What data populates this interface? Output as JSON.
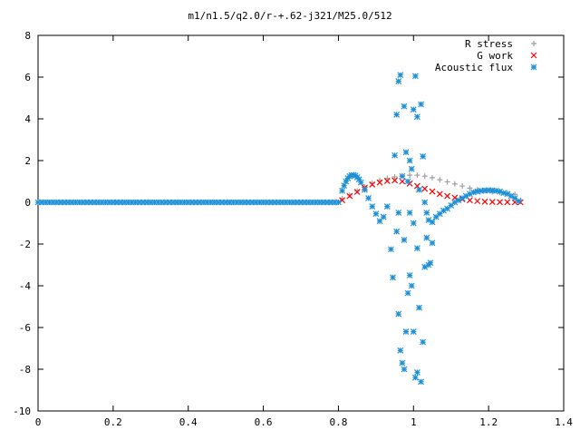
{
  "chart_data": {
    "type": "scatter",
    "title": "m1/n1.5/q2.0/r-+.62-j321/M25.0/512",
    "xlabel": "",
    "ylabel": "",
    "xlim": [
      0,
      1.4
    ],
    "ylim": [
      -10,
      8
    ],
    "x_ticks": [
      "0",
      "0.2",
      "0.4",
      "0.6",
      "0.8",
      "1",
      "1.2",
      "1.4"
    ],
    "y_ticks": [
      "-10",
      "-8",
      "-6",
      "-4",
      "-2",
      "0",
      "2",
      "4",
      "6",
      "8"
    ],
    "grid": false,
    "legend_position": "top-right",
    "series": [
      {
        "name": "R stress",
        "marker": "plus",
        "color": "#a0a0a0",
        "points": [
          [
            0.81,
            0.18
          ],
          [
            0.83,
            0.35
          ],
          [
            0.85,
            0.55
          ],
          [
            0.87,
            0.75
          ],
          [
            0.89,
            0.92
          ],
          [
            0.91,
            1.05
          ],
          [
            0.93,
            1.15
          ],
          [
            0.95,
            1.22
          ],
          [
            0.97,
            1.27
          ],
          [
            0.99,
            1.3
          ],
          [
            1.01,
            1.3
          ],
          [
            1.03,
            1.25
          ],
          [
            1.05,
            1.18
          ],
          [
            1.07,
            1.08
          ],
          [
            1.09,
            0.98
          ],
          [
            1.11,
            0.88
          ],
          [
            1.13,
            0.78
          ],
          [
            1.15,
            0.68
          ],
          [
            1.17,
            0.6
          ],
          [
            1.19,
            0.55
          ],
          [
            1.21,
            0.5
          ],
          [
            1.23,
            0.48
          ],
          [
            1.25,
            0.45
          ],
          [
            1.27,
            0.38
          ],
          [
            1.285,
            0.1
          ]
        ]
      },
      {
        "name": "G work",
        "marker": "cross",
        "color": "#ff0000",
        "points": [
          [
            0.81,
            0.1
          ],
          [
            0.83,
            0.3
          ],
          [
            0.85,
            0.5
          ],
          [
            0.87,
            0.7
          ],
          [
            0.89,
            0.85
          ],
          [
            0.91,
            0.95
          ],
          [
            0.93,
            1.02
          ],
          [
            0.95,
            1.05
          ],
          [
            0.97,
            1.0
          ],
          [
            0.99,
            0.9
          ],
          [
            1.01,
            0.78
          ],
          [
            1.03,
            0.65
          ],
          [
            1.05,
            0.52
          ],
          [
            1.07,
            0.4
          ],
          [
            1.09,
            0.3
          ],
          [
            1.11,
            0.22
          ],
          [
            1.13,
            0.15
          ],
          [
            1.15,
            0.1
          ],
          [
            1.17,
            0.06
          ],
          [
            1.19,
            0.03
          ],
          [
            1.21,
            0.02
          ],
          [
            1.23,
            0.01
          ],
          [
            1.25,
            0.01
          ],
          [
            1.27,
            0.0
          ],
          [
            1.285,
            0.0
          ]
        ]
      },
      {
        "name": "Acoustic flux",
        "marker": "star",
        "color": "#1e90d8",
        "points": [
          [
            0.81,
            0.55
          ],
          [
            0.815,
            0.8
          ],
          [
            0.82,
            1.0
          ],
          [
            0.825,
            1.15
          ],
          [
            0.83,
            1.25
          ],
          [
            0.835,
            1.3
          ],
          [
            0.84,
            1.3
          ],
          [
            0.845,
            1.28
          ],
          [
            0.85,
            1.2
          ],
          [
            0.855,
            1.1
          ],
          [
            0.86,
            0.95
          ],
          [
            0.87,
            0.6
          ],
          [
            0.88,
            0.2
          ],
          [
            0.89,
            -0.2
          ],
          [
            0.9,
            -0.55
          ],
          [
            0.91,
            -0.9
          ],
          [
            0.92,
            -0.7
          ],
          [
            0.93,
            -0.2
          ],
          [
            0.94,
            -2.25
          ],
          [
            0.945,
            -3.6
          ],
          [
            0.95,
            2.25
          ],
          [
            0.955,
            4.2
          ],
          [
            0.96,
            5.8
          ],
          [
            0.965,
            6.1
          ],
          [
            0.97,
            1.25
          ],
          [
            0.975,
            4.6
          ],
          [
            0.98,
            2.4
          ],
          [
            0.985,
            1.0
          ],
          [
            0.99,
            2.0
          ],
          [
            0.995,
            1.6
          ],
          [
            1.0,
            4.45
          ],
          [
            1.005,
            6.05
          ],
          [
            1.01,
            4.1
          ],
          [
            1.015,
            0.6
          ],
          [
            1.02,
            4.7
          ],
          [
            1.025,
            2.2
          ],
          [
            1.03,
            0.0
          ],
          [
            1.035,
            -0.5
          ],
          [
            1.04,
            -0.85
          ],
          [
            1.05,
            -0.95
          ],
          [
            1.06,
            -0.7
          ],
          [
            1.07,
            -0.55
          ],
          [
            1.08,
            -0.4
          ],
          [
            1.09,
            -0.3
          ],
          [
            1.1,
            -0.15
          ],
          [
            1.11,
            0.0
          ],
          [
            1.12,
            0.1
          ],
          [
            1.13,
            0.2
          ],
          [
            1.14,
            0.3
          ],
          [
            1.15,
            0.4
          ],
          [
            1.16,
            0.48
          ],
          [
            1.17,
            0.52
          ],
          [
            1.18,
            0.55
          ],
          [
            1.19,
            0.57
          ],
          [
            1.2,
            0.58
          ],
          [
            1.21,
            0.57
          ],
          [
            1.22,
            0.55
          ],
          [
            1.23,
            0.52
          ],
          [
            1.24,
            0.45
          ],
          [
            1.25,
            0.4
          ],
          [
            1.26,
            0.3
          ],
          [
            1.27,
            0.2
          ],
          [
            1.28,
            0.05
          ],
          [
            0.96,
            -5.35
          ],
          [
            0.965,
            -7.1
          ],
          [
            0.97,
            -7.7
          ],
          [
            0.975,
            -8.0
          ],
          [
            0.98,
            -6.2
          ],
          [
            0.985,
            -4.35
          ],
          [
            0.99,
            -3.5
          ],
          [
            0.995,
            -4.0
          ],
          [
            1.0,
            -6.2
          ],
          [
            1.005,
            -8.4
          ],
          [
            1.01,
            -8.15
          ],
          [
            1.015,
            -5.05
          ],
          [
            1.02,
            -8.6
          ],
          [
            1.025,
            -6.7
          ],
          [
            1.03,
            -3.1
          ],
          [
            1.035,
            -1.7
          ],
          [
            1.04,
            -3.0
          ],
          [
            1.045,
            -2.9
          ],
          [
            1.05,
            -1.95
          ],
          [
            0.955,
            -1.4
          ],
          [
            0.975,
            -1.8
          ],
          [
            1.0,
            -1.0
          ],
          [
            1.01,
            -2.2
          ],
          [
            0.96,
            -0.5
          ],
          [
            0.99,
            -0.5
          ]
        ]
      },
      {
        "name": "",
        "marker": "star",
        "color": "#1e90d8",
        "baseline": true,
        "x_from": 0,
        "x_to": 0.8,
        "x_step": 0.01,
        "y": 0
      }
    ]
  }
}
